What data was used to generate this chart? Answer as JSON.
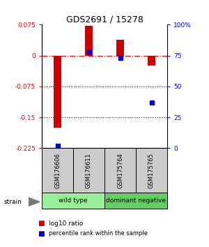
{
  "title": "GDS2691 / 15278",
  "categories": [
    "GSM176606",
    "GSM176611",
    "GSM175764",
    "GSM175765"
  ],
  "log10_ratio": [
    -0.175,
    0.073,
    0.038,
    -0.025
  ],
  "percentile_rank": [
    2,
    78,
    73,
    37
  ],
  "ylim": [
    -0.225,
    0.075
  ],
  "yticks_left": [
    -0.225,
    -0.15,
    -0.075,
    0,
    0.075
  ],
  "ytick_labels_left": [
    "-0.225",
    "-0.15",
    "-0.075",
    "0",
    "0.075"
  ],
  "yticks_right_pct": [
    0,
    25,
    50,
    75,
    100
  ],
  "ytick_labels_right": [
    "0",
    "25",
    "50",
    "75",
    "100%"
  ],
  "hline_y": 0,
  "dotted_lines": [
    -0.075,
    -0.15
  ],
  "bar_color": "#cc0000",
  "dot_color": "#0000cc",
  "bar_width": 0.25,
  "groups": [
    {
      "label": "wild type",
      "columns": [
        0,
        1
      ],
      "color": "#99ee99"
    },
    {
      "label": "dominant negative",
      "columns": [
        2,
        3
      ],
      "color": "#66cc66"
    }
  ],
  "strain_label": "strain",
  "legend_bar_label": "log10 ratio",
  "legend_dot_label": "percentile rank within the sample",
  "label_box_color": "#cccccc",
  "bg_color": "#ffffff"
}
